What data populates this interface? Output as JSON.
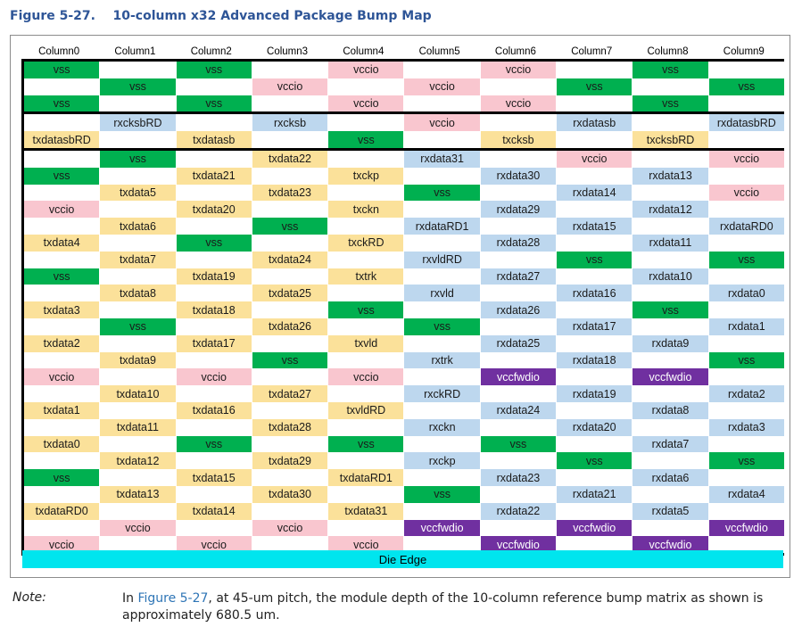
{
  "figure": {
    "number": "Figure 5-27.",
    "title": "10-column x32 Advanced Package Bump Map"
  },
  "colors": {
    "vss": "#00b050",
    "vccio": "#f9c6cf",
    "vccfwdio": "#7030a0",
    "tx": "#fbe19a",
    "rx": "#bdd7ee",
    "die_edge": "#00e5ee",
    "title": "#2e5597"
  },
  "columns": [
    "Column0",
    "Column1",
    "Column2",
    "Column3",
    "Column4",
    "Column5",
    "Column6",
    "Column7",
    "Column8",
    "Column9"
  ],
  "blocks": [
    [
      [
        "vss",
        "",
        "vss",
        "",
        "vccio",
        "",
        "vccio",
        "",
        "vss",
        ""
      ],
      [
        "",
        "vss",
        "",
        "vccio",
        "",
        "vccio",
        "",
        "vss",
        "",
        "vss"
      ],
      [
        "vss",
        "",
        "vss",
        "",
        "vccio",
        "",
        "vccio",
        "",
        "vss",
        ""
      ]
    ],
    [
      [
        "",
        "rxcksbRD",
        "",
        "rxcksb",
        "",
        "vccio",
        "",
        "rxdatasb",
        "",
        "rxdatasbRD"
      ],
      [
        "txdatasbRD",
        "",
        "txdatasb",
        "",
        "vss",
        "",
        "txcksb",
        "",
        "txcksbRD",
        ""
      ]
    ],
    [
      [
        "",
        "vss",
        "",
        "txdata22",
        "",
        "rxdata31",
        "",
        "vccio",
        "",
        "vccio"
      ],
      [
        "vss",
        "",
        "txdata21",
        "",
        "txckp",
        "",
        "rxdata30",
        "",
        "rxdata13",
        ""
      ],
      [
        "",
        "txdata5",
        "",
        "txdata23",
        "",
        "vss",
        "",
        "rxdata14",
        "",
        "vccio"
      ],
      [
        "vccio",
        "",
        "txdata20",
        "",
        "txckn",
        "",
        "rxdata29",
        "",
        "rxdata12",
        ""
      ],
      [
        "",
        "txdata6",
        "",
        "vss",
        "",
        "rxdataRD1",
        "",
        "rxdata15",
        "",
        "rxdataRD0"
      ],
      [
        "txdata4",
        "",
        "vss",
        "",
        "txckRD",
        "",
        "rxdata28",
        "",
        "rxdata11",
        ""
      ],
      [
        "",
        "txdata7",
        "",
        "txdata24",
        "",
        "rxvldRD",
        "",
        "vss",
        "",
        "vss"
      ],
      [
        "vss",
        "",
        "txdata19",
        "",
        "txtrk",
        "",
        "rxdata27",
        "",
        "rxdata10",
        ""
      ],
      [
        "",
        "txdata8",
        "",
        "txdata25",
        "",
        "rxvld",
        "",
        "rxdata16",
        "",
        "rxdata0"
      ],
      [
        "txdata3",
        "",
        "txdata18",
        "",
        "vss",
        "",
        "rxdata26",
        "",
        "vss",
        ""
      ],
      [
        "",
        "vss",
        "",
        "txdata26",
        "",
        "vss",
        "",
        "rxdata17",
        "",
        "rxdata1"
      ],
      [
        "txdata2",
        "",
        "txdata17",
        "",
        "txvld",
        "",
        "rxdata25",
        "",
        "rxdata9",
        ""
      ],
      [
        "",
        "txdata9",
        "",
        "vss",
        "",
        "rxtrk",
        "",
        "rxdata18",
        "",
        "vss"
      ],
      [
        "vccio",
        "",
        "vccio",
        "",
        "vccio",
        "",
        "vccfwdio",
        "",
        "vccfwdio",
        ""
      ],
      [
        "",
        "txdata10",
        "",
        "txdata27",
        "",
        "rxckRD",
        "",
        "rxdata19",
        "",
        "rxdata2"
      ],
      [
        "txdata1",
        "",
        "txdata16",
        "",
        "txvldRD",
        "",
        "rxdata24",
        "",
        "rxdata8",
        ""
      ],
      [
        "",
        "txdata11",
        "",
        "txdata28",
        "",
        "rxckn",
        "",
        "rxdata20",
        "",
        "rxdata3"
      ],
      [
        "txdata0",
        "",
        "vss",
        "",
        "vss",
        "",
        "vss",
        "",
        "rxdata7",
        ""
      ],
      [
        "",
        "txdata12",
        "",
        "txdata29",
        "",
        "rxckp",
        "",
        "vss",
        "",
        "vss"
      ],
      [
        "vss",
        "",
        "txdata15",
        "",
        "txdataRD1",
        "",
        "rxdata23",
        "",
        "rxdata6",
        ""
      ],
      [
        "",
        "txdata13",
        "",
        "txdata30",
        "",
        "vss",
        "",
        "rxdata21",
        "",
        "rxdata4"
      ],
      [
        "txdataRD0",
        "",
        "txdata14",
        "",
        "txdata31",
        "",
        "rxdata22",
        "",
        "rxdata5",
        ""
      ],
      [
        "",
        "vccio",
        "",
        "vccio",
        "",
        "vccfwdio",
        "",
        "vccfwdio",
        "",
        "vccfwdio"
      ],
      [
        "vccio",
        "",
        "vccio",
        "",
        "vccio",
        "",
        "vccfwdio",
        "",
        "vccfwdio",
        ""
      ]
    ]
  ],
  "die_edge_label": "Die Edge",
  "note": {
    "label": "Note:",
    "prefix": "In ",
    "reference": "Figure 5-27",
    "text": ", at 45-um pitch, the module depth of the 10-column reference bump matrix as shown is approximately 680.5 um."
  }
}
